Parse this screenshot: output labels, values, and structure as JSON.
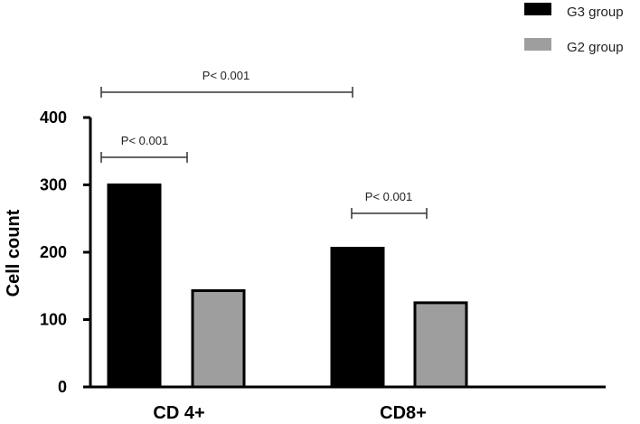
{
  "chart_data": {
    "type": "bar",
    "categories": [
      "CD 4+",
      "CD8+"
    ],
    "series": [
      {
        "name": "G3 group",
        "values": [
          300,
          206
        ],
        "color": "#000000"
      },
      {
        "name": "G2 group",
        "values": [
          143,
          125
        ],
        "color": "#9e9e9e"
      }
    ],
    "ylabel": "Cell count",
    "xlabel": "",
    "title": "",
    "ylim": [
      0,
      400
    ],
    "yticks": [
      0,
      100,
      200,
      300,
      400
    ],
    "grid": false,
    "legend_position": "top-right",
    "annotations": [
      {
        "text": "P< 0.001"
      },
      {
        "text": "P< 0.001"
      },
      {
        "text": "P< 0.001"
      }
    ]
  }
}
